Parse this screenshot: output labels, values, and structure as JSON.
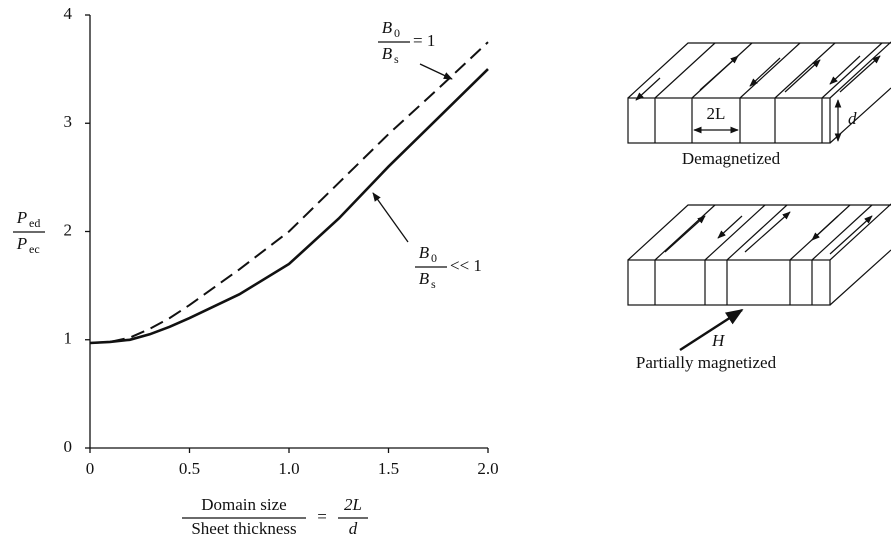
{
  "chart_data": {
    "type": "line",
    "x": [
      0,
      0.1,
      0.2,
      0.3,
      0.4,
      0.5,
      0.75,
      1.0,
      1.25,
      1.5,
      1.75,
      2.0
    ],
    "series": [
      {
        "name": "B0/Bs = 1",
        "color": "#111111",
        "line_style": "dashed",
        "values": [
          0.97,
          0.98,
          1.02,
          1.1,
          1.2,
          1.32,
          1.65,
          2.0,
          2.45,
          2.9,
          3.32,
          3.75
        ]
      },
      {
        "name": "B0/Bs << 1",
        "color": "#111111",
        "line_style": "solid",
        "values": [
          0.97,
          0.98,
          1.0,
          1.05,
          1.12,
          1.2,
          1.42,
          1.7,
          2.12,
          2.6,
          3.05,
          3.5
        ]
      }
    ],
    "xlim": [
      0,
      2.0
    ],
    "ylim": [
      0,
      4
    ],
    "xticks": [
      0,
      0.5,
      {
        "value": 1.0,
        "label": "1.0"
      },
      1.5,
      {
        "value": 2.0,
        "label": "2.0"
      }
    ],
    "yticks": [
      0,
      1,
      2,
      3,
      4
    ],
    "grid": false,
    "y_label": {
      "numerator": "P",
      "numerator_sub": "ed",
      "denominator": "P",
      "denominator_sub": "ec"
    },
    "x_label": {
      "numerator": "Domain size",
      "denominator": "Sheet thickness",
      "equals": "=",
      "numerator2": "2L",
      "denominator2": "d"
    },
    "annotations": [
      {
        "numerator": "B",
        "numerator_sub": "0",
        "denominator": "B",
        "denominator_sub": "s",
        "relation": "= 1"
      },
      {
        "numerator": "B",
        "numerator_sub": "0",
        "denominator": "B",
        "denominator_sub": "s",
        "relation": "<< 1"
      }
    ]
  },
  "diagram": {
    "width_label": "2L",
    "thickness_label": "d",
    "top_caption": "Demagnetized",
    "field_label": "H",
    "bottom_caption": "Partially magnetized"
  }
}
